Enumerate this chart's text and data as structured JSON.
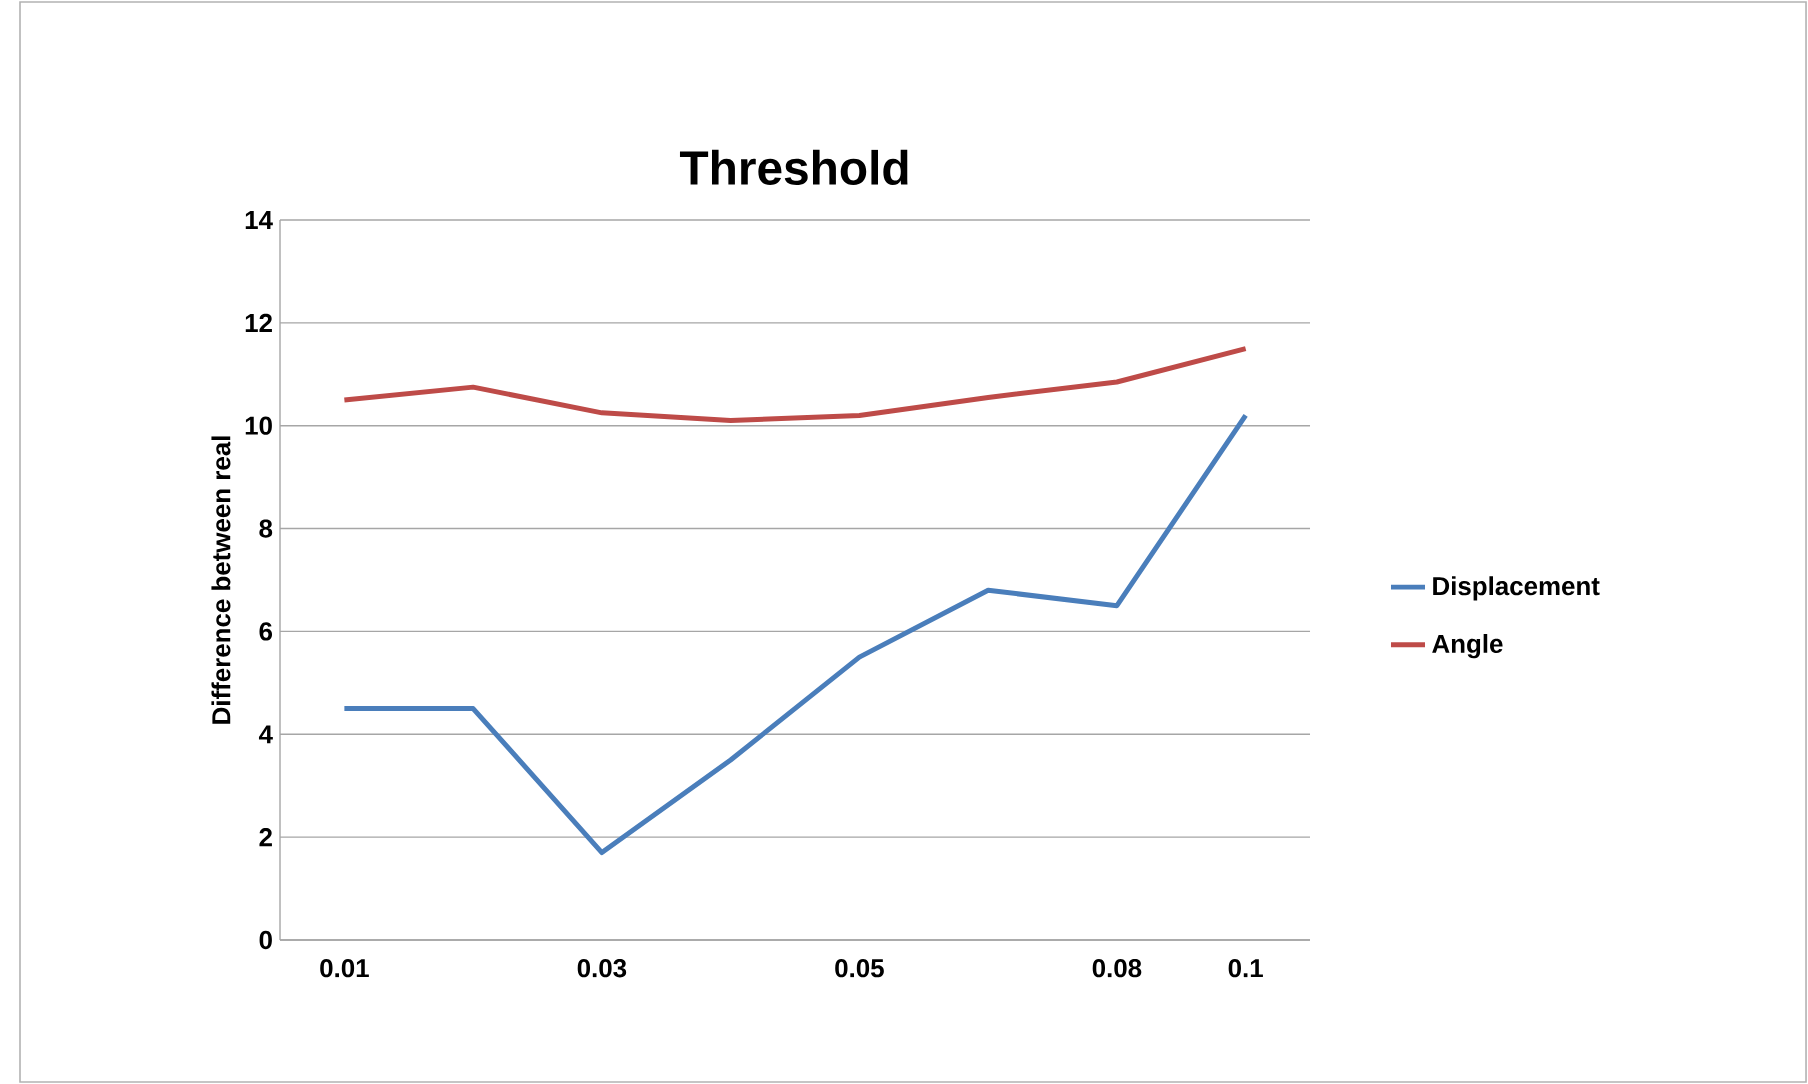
{
  "chart_data": {
    "type": "line",
    "title": "Threshold",
    "ylabel": "Difference between real",
    "categories": [
      "0.01",
      null,
      "0.03",
      null,
      "0.05",
      null,
      "0.08",
      "0.1"
    ],
    "series": [
      {
        "name": "Displacement",
        "color": "#4a7ebb",
        "values": [
          4.5,
          4.5,
          1.7,
          3.5,
          5.5,
          6.8,
          6.5,
          10.2
        ]
      },
      {
        "name": "Angle",
        "color": "#be4b48",
        "values": [
          10.5,
          10.75,
          10.25,
          10.1,
          10.2,
          10.55,
          10.85,
          11.5
        ]
      }
    ],
    "ylim": [
      0,
      14
    ],
    "yticks": [
      0,
      2,
      4,
      6,
      8,
      10,
      12,
      14
    ],
    "grid": "y",
    "legend": "right",
    "marker": "none",
    "line_style": "solid"
  }
}
